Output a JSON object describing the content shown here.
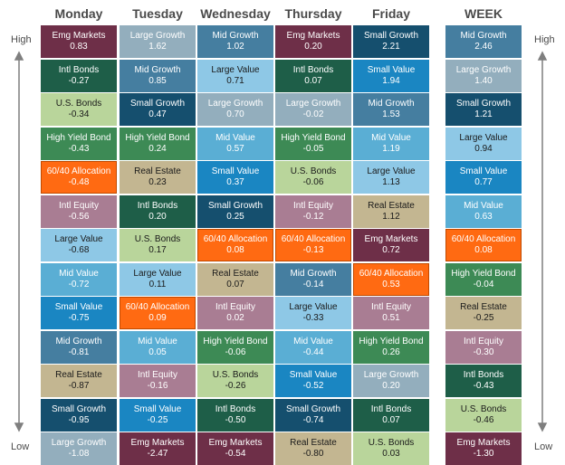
{
  "chart_data": {
    "type": "table",
    "columns": [
      "Monday",
      "Tuesday",
      "Wednesday",
      "Thursday",
      "Friday",
      "WEEK"
    ],
    "axis_labels": {
      "top": "High",
      "bottom": "Low"
    },
    "colors": {
      "Emg Markets": "#6e2f48",
      "Intl Bonds": "#1e5e48",
      "U.S. Bonds": "#b9d59b",
      "High Yield Bond": "#3d8a55",
      "60/40 Allocation": "#ff6a12",
      "Intl Equity": "#a97d93",
      "Large Value": "#8ec8e6",
      "Mid Value": "#5aaed4",
      "Small Value": "#1a86c2",
      "Mid Growth": "#457ea0",
      "Real Estate": "#c3b691",
      "Small Growth": "#154f6e",
      "Large Growth": "#93aebd"
    },
    "light_text": [
      "Emg Markets",
      "Intl Bonds",
      "High Yield Bond",
      "Intl Equity",
      "Small Value",
      "Mid Growth",
      "Small Growth",
      "Large Growth",
      "Mid Value",
      "60/40 Allocation"
    ],
    "rows": [
      [
        [
          "Emg Markets",
          "0.83"
        ],
        [
          "Large Growth",
          "1.62"
        ],
        [
          "Mid Growth",
          "1.02"
        ],
        [
          "Emg Markets",
          "0.20"
        ],
        [
          "Small Growth",
          "2.21"
        ],
        [
          "Mid Growth",
          "2.46"
        ]
      ],
      [
        [
          "Intl Bonds",
          "-0.27"
        ],
        [
          "Mid Growth",
          "0.85"
        ],
        [
          "Large Value",
          "0.71"
        ],
        [
          "Intl Bonds",
          "0.07"
        ],
        [
          "Small Value",
          "1.94"
        ],
        [
          "Large Growth",
          "1.40"
        ]
      ],
      [
        [
          "U.S. Bonds",
          "-0.34"
        ],
        [
          "Small Growth",
          "0.47"
        ],
        [
          "Large Growth",
          "0.70"
        ],
        [
          "Large Growth",
          "-0.02"
        ],
        [
          "Mid Growth",
          "1.53"
        ],
        [
          "Small Growth",
          "1.21"
        ]
      ],
      [
        [
          "High Yield Bond",
          "-0.43"
        ],
        [
          "High Yield Bond",
          "0.24"
        ],
        [
          "Mid Value",
          "0.57"
        ],
        [
          "High Yield Bond",
          "-0.05"
        ],
        [
          "Mid Value",
          "1.19"
        ],
        [
          "Large Value",
          "0.94"
        ]
      ],
      [
        [
          "60/40 Allocation",
          "-0.48"
        ],
        [
          "Real Estate",
          "0.23"
        ],
        [
          "Small Value",
          "0.37"
        ],
        [
          "U.S. Bonds",
          "-0.06"
        ],
        [
          "Large Value",
          "1.13"
        ],
        [
          "Small Value",
          "0.77"
        ]
      ],
      [
        [
          "Intl Equity",
          "-0.56"
        ],
        [
          "Intl Bonds",
          "0.20"
        ],
        [
          "Small Growth",
          "0.25"
        ],
        [
          "Intl Equity",
          "-0.12"
        ],
        [
          "Real Estate",
          "1.12"
        ],
        [
          "Mid Value",
          "0.63"
        ]
      ],
      [
        [
          "Large Value",
          "-0.68"
        ],
        [
          "U.S. Bonds",
          "0.17"
        ],
        [
          "60/40 Allocation",
          "0.08"
        ],
        [
          "60/40 Allocation",
          "-0.13"
        ],
        [
          "Emg Markets",
          "0.72"
        ],
        [
          "60/40 Allocation",
          "0.08"
        ]
      ],
      [
        [
          "Mid Value",
          "-0.72"
        ],
        [
          "Large Value",
          "0.11"
        ],
        [
          "Real Estate",
          "0.07"
        ],
        [
          "Mid Growth",
          "-0.14"
        ],
        [
          "60/40 Allocation",
          "0.53"
        ],
        [
          "High Yield Bond",
          "-0.04"
        ]
      ],
      [
        [
          "Small Value",
          "-0.75"
        ],
        [
          "60/40 Allocation",
          "0.09"
        ],
        [
          "Intl Equity",
          "0.02"
        ],
        [
          "Large Value",
          "-0.33"
        ],
        [
          "Intl Equity",
          "0.51"
        ],
        [
          "Real Estate",
          "-0.25"
        ]
      ],
      [
        [
          "Mid Growth",
          "-0.81"
        ],
        [
          "Mid Value",
          "0.05"
        ],
        [
          "High Yield Bond",
          "-0.06"
        ],
        [
          "Mid Value",
          "-0.44"
        ],
        [
          "High Yield Bond",
          "0.26"
        ],
        [
          "Intl Equity",
          "-0.30"
        ]
      ],
      [
        [
          "Real Estate",
          "-0.87"
        ],
        [
          "Intl Equity",
          "-0.16"
        ],
        [
          "U.S. Bonds",
          "-0.26"
        ],
        [
          "Small Value",
          "-0.52"
        ],
        [
          "Large Growth",
          "0.20"
        ],
        [
          "Intl Bonds",
          "-0.43"
        ]
      ],
      [
        [
          "Small Growth",
          "-0.95"
        ],
        [
          "Small Value",
          "-0.25"
        ],
        [
          "Intl Bonds",
          "-0.50"
        ],
        [
          "Small Growth",
          "-0.74"
        ],
        [
          "Intl Bonds",
          "0.07"
        ],
        [
          "U.S. Bonds",
          "-0.46"
        ]
      ],
      [
        [
          "Large Growth",
          "-1.08"
        ],
        [
          "Emg Markets",
          "-2.47"
        ],
        [
          "Emg Markets",
          "-0.54"
        ],
        [
          "Real Estate",
          "-0.80"
        ],
        [
          "U.S. Bonds",
          "0.03"
        ],
        [
          "Emg Markets",
          "-1.30"
        ]
      ]
    ]
  }
}
